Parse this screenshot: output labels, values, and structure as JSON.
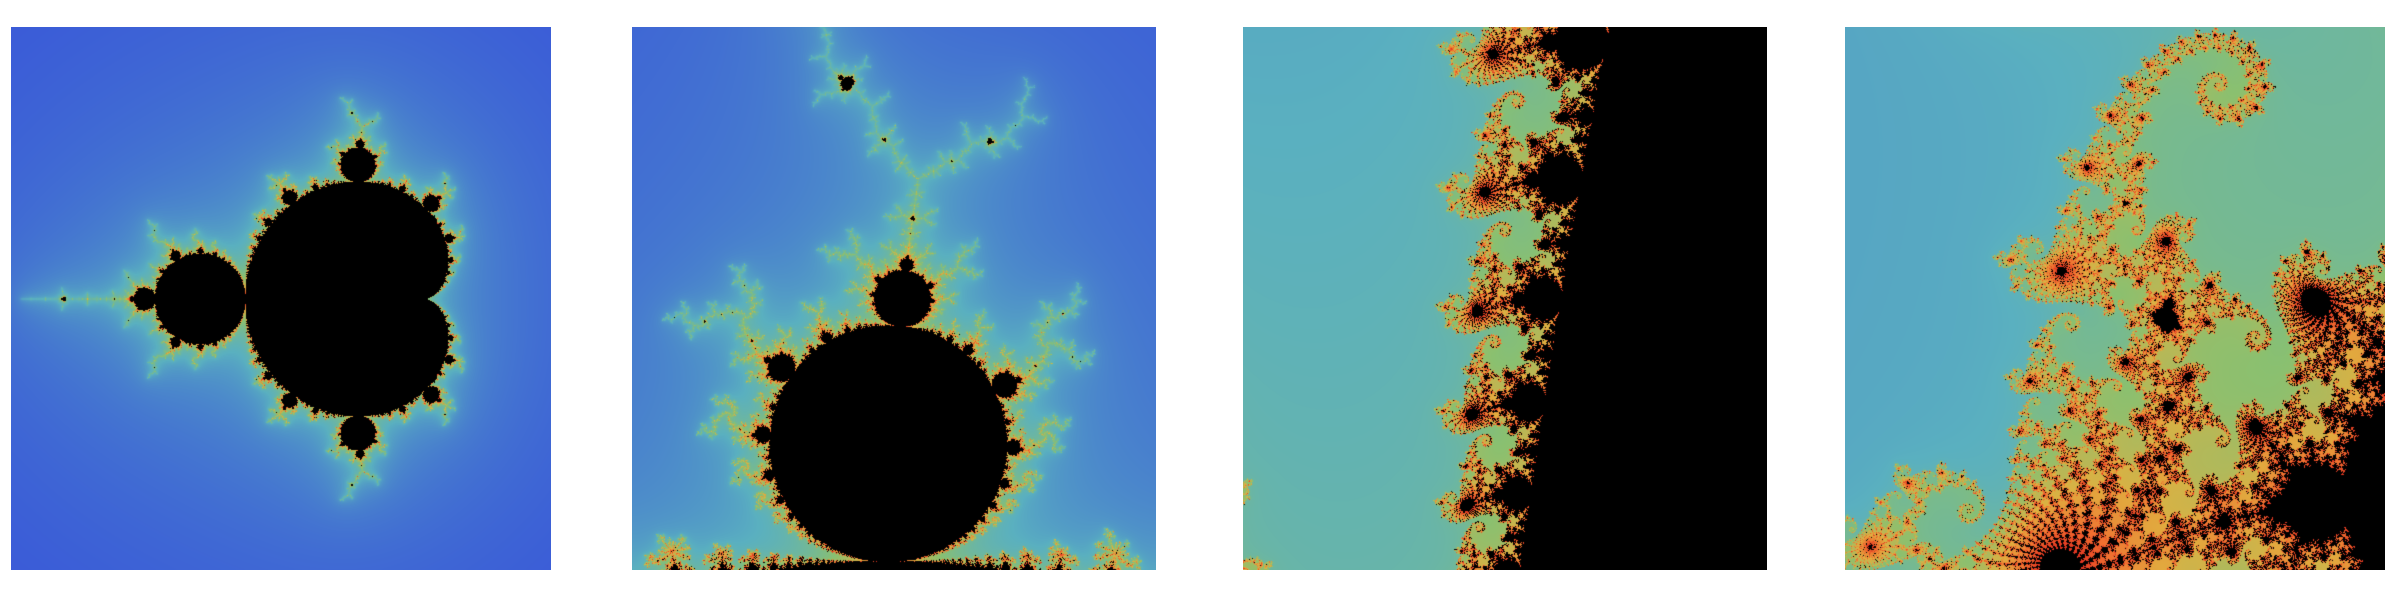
{
  "figure": {
    "panels": [
      {
        "id": "p1",
        "label": "",
        "view": {
          "cx": -0.55,
          "cy": 0.0,
          "span": 3.0
        },
        "max_iter": 120
      },
      {
        "id": "p2",
        "label": "",
        "view": {
          "cx": -0.12,
          "cy": 0.86,
          "span": 0.42
        },
        "max_iter": 200
      },
      {
        "id": "p3",
        "label": "",
        "view": {
          "cx": -0.745,
          "cy": 0.108,
          "span": 0.035
        },
        "max_iter": 300
      },
      {
        "id": "p4",
        "label": "",
        "view": {
          "cx": -0.7463,
          "cy": 0.1102,
          "span": 0.006
        },
        "max_iter": 400
      }
    ],
    "palette": {
      "outer": "#6a1a8a",
      "mid": "#3a5ad8",
      "teal": "#5ab0c0",
      "green": "#8ac070",
      "yellow": "#e0b040",
      "orange": "#f07030",
      "red": "#e03020",
      "inside": "#000000"
    }
  }
}
